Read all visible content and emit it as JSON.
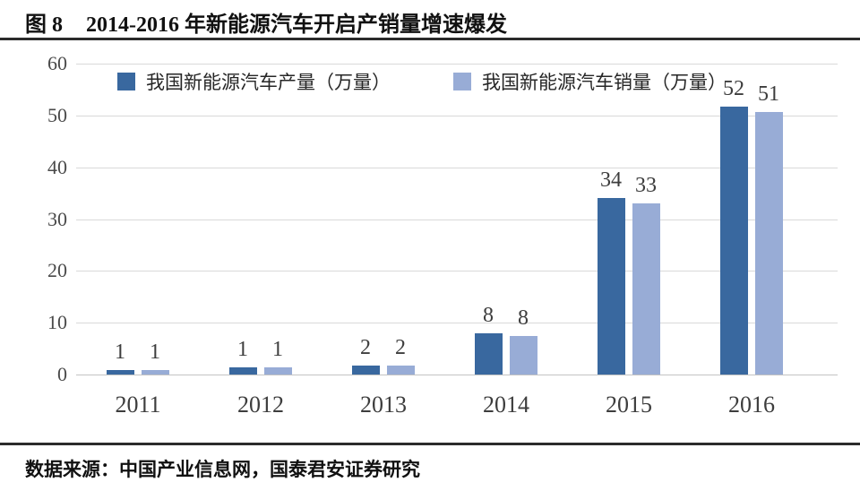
{
  "header": {
    "figure_label": "图 8",
    "title": "2014-2016 年新能源汽车开启产销量增速爆发"
  },
  "legend": {
    "items": [
      {
        "label": "我国新能源汽车产量（万量）",
        "color": "#39689F"
      },
      {
        "label": "我国新能源汽车销量（万量）",
        "color": "#98ACD6"
      }
    ]
  },
  "chart_data": {
    "type": "bar",
    "title": "2014-2016 年新能源汽车开启产销量增速爆发",
    "categories": [
      "2011",
      "2012",
      "2013",
      "2014",
      "2015",
      "2016"
    ],
    "series": [
      {
        "name": "我国新能源汽车产量（万量）",
        "color": "#39689F",
        "values": [
          0.8,
          1.3,
          1.8,
          7.9,
          34,
          51.7
        ],
        "labels": [
          "1",
          "1",
          "2",
          "8",
          "34",
          "52"
        ]
      },
      {
        "name": "我国新能源汽车销量（万量）",
        "color": "#98ACD6",
        "values": [
          0.8,
          1.3,
          1.8,
          7.5,
          33,
          50.7
        ],
        "labels": [
          "1",
          "1",
          "2",
          "8",
          "33",
          "51"
        ]
      }
    ],
    "xlabel": "",
    "ylabel": "",
    "ylim": [
      0,
      60
    ],
    "yticks": [
      0,
      10,
      20,
      30,
      40,
      50,
      60
    ],
    "grid": true,
    "legend_position": "top"
  },
  "footer": {
    "source": "数据来源：中国产业信息网，国泰君安证券研究"
  }
}
